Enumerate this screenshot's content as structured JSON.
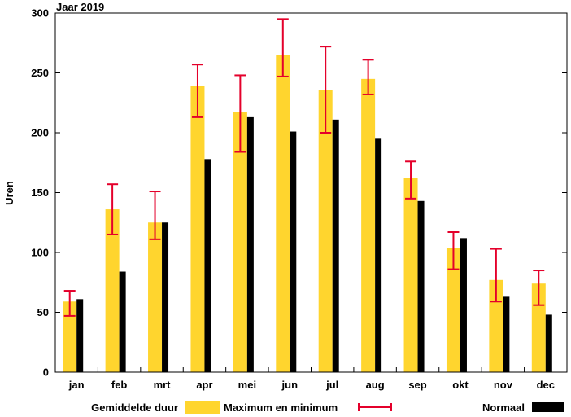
{
  "chart_data": {
    "type": "bar",
    "title": "Jaar 2019",
    "ylabel": "Uren",
    "xlabel": "",
    "ylim": [
      0,
      300
    ],
    "yticks": [
      0,
      50,
      100,
      150,
      200,
      250,
      300
    ],
    "grid": false,
    "legend_position": "bottom",
    "categories": [
      "jan",
      "feb",
      "mrt",
      "apr",
      "mei",
      "jun",
      "jul",
      "aug",
      "sep",
      "okt",
      "nov",
      "dec"
    ],
    "series": [
      {
        "name": "Gemiddelde duur",
        "color": "#FFD52E",
        "values": [
          59,
          136,
          125,
          239,
          217,
          265,
          236,
          245,
          162,
          104,
          77,
          74
        ]
      },
      {
        "name": "Maximum en minimum",
        "color": "#E4002B",
        "type": "errorbar",
        "max": [
          68,
          157,
          151,
          257,
          248,
          295,
          272,
          261,
          176,
          117,
          103,
          85
        ],
        "min": [
          47,
          115,
          111,
          213,
          184,
          247,
          200,
          232,
          145,
          86,
          59,
          56
        ]
      },
      {
        "name": "Normaal",
        "color": "#000000",
        "values": [
          61,
          84,
          125,
          178,
          213,
          201,
          211,
          195,
          143,
          112,
          63,
          48
        ]
      }
    ]
  }
}
